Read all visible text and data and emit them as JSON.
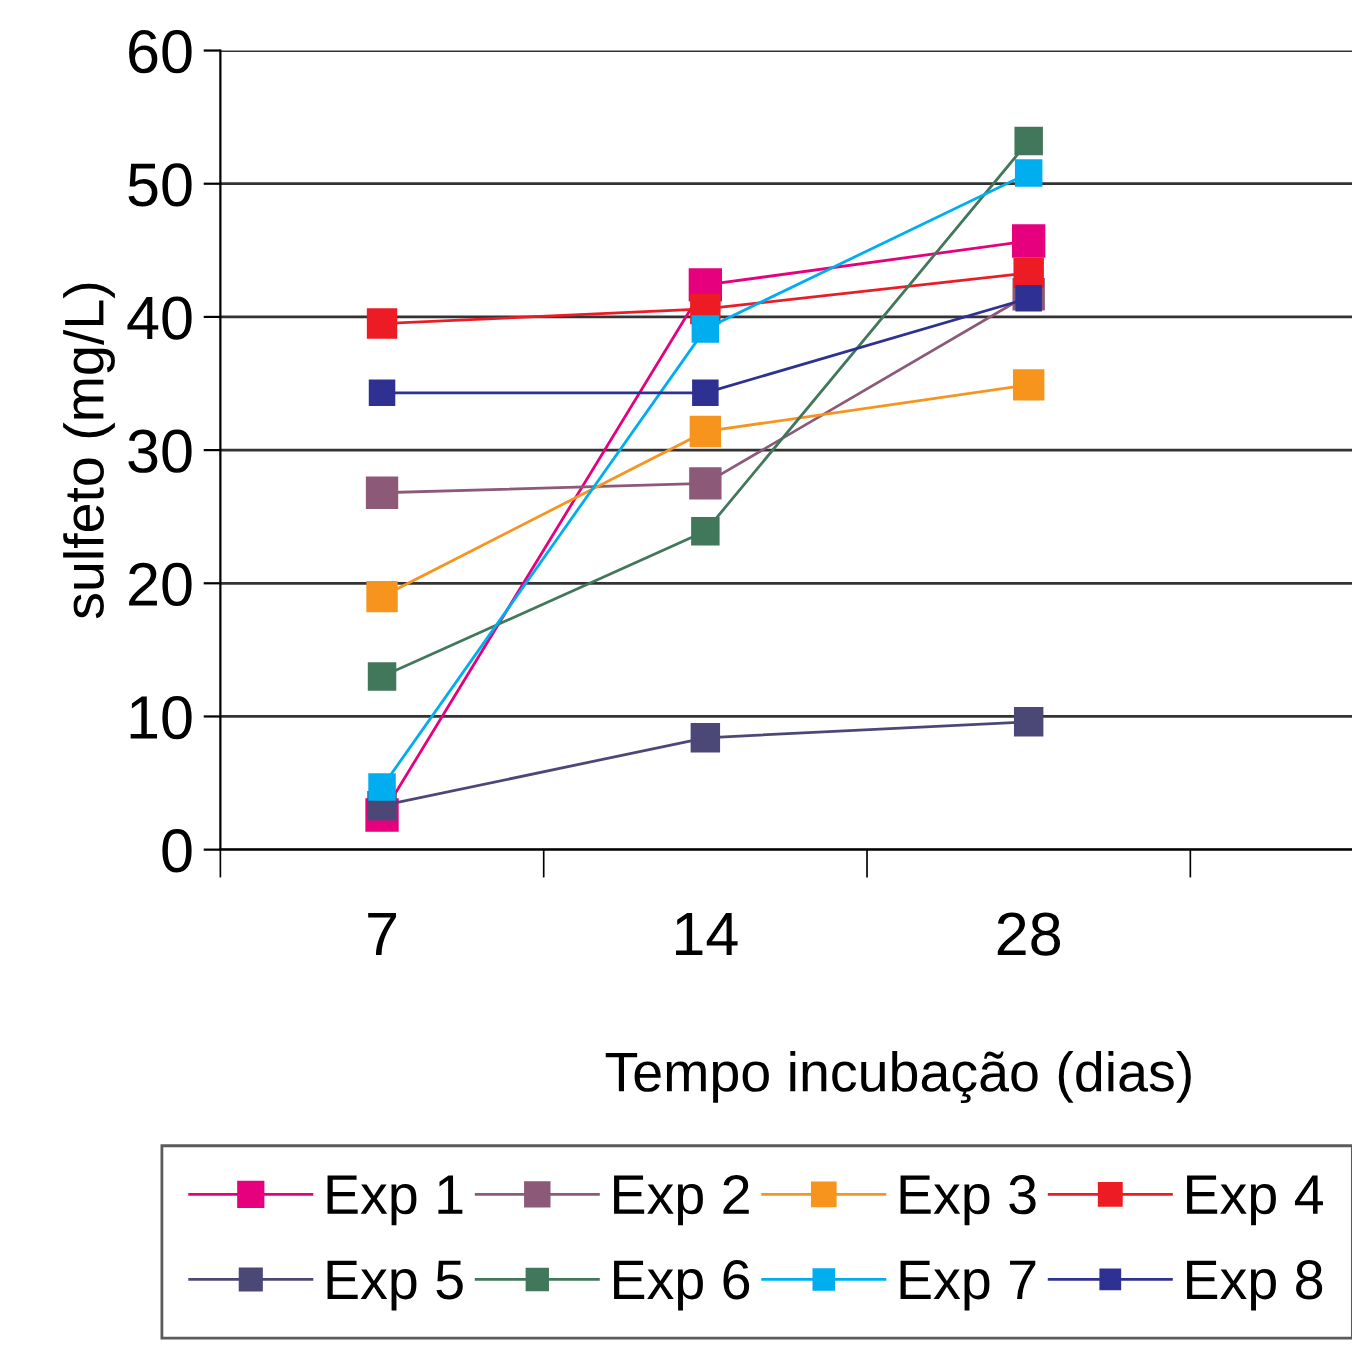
{
  "chart_data": {
    "type": "line",
    "xlabel": "Tempo incubação (dias)",
    "ylabel": "sulfeto (mg/L)",
    "categories": [
      "7",
      "14",
      "28"
    ],
    "series": [
      {
        "name": "Exp 1",
        "color": "#e6007e",
        "values": [
          2.6,
          42.4,
          45.7
        ]
      },
      {
        "name": "Exp 2",
        "color": "#8c5a78",
        "values": [
          26.8,
          27.5,
          41.7
        ]
      },
      {
        "name": "Exp 3",
        "color": "#f7941d",
        "values": [
          19,
          31.4,
          34.9
        ]
      },
      {
        "name": "Exp 4",
        "color": "#ed1c24",
        "values": [
          39.5,
          40.6,
          43.3
        ]
      },
      {
        "name": "Exp 5",
        "color": "#4b4878",
        "values": [
          3.3,
          8.4,
          9.6
        ]
      },
      {
        "name": "Exp 6",
        "color": "#41775a",
        "values": [
          13,
          23.9,
          53.2
        ]
      },
      {
        "name": "Exp 7",
        "color": "#00aeef",
        "values": [
          4.7,
          39.1,
          50.8
        ]
      },
      {
        "name": "Exp 8",
        "color": "#2e3192",
        "values": [
          34.3,
          34.3,
          41.4
        ]
      }
    ],
    "ylim": [
      0,
      60
    ],
    "yticks": [
      0,
      10,
      20,
      30,
      40,
      50,
      60
    ],
    "grid": "y",
    "legend": "bottom",
    "marker": "square",
    "line_style": "solid"
  }
}
